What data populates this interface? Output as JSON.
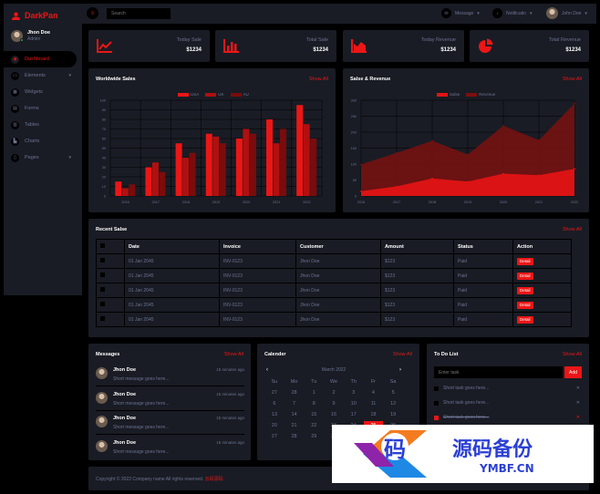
{
  "brand": {
    "name": "DarkPan",
    "color": "#eb1616"
  },
  "user": {
    "name": "Jhon Doe",
    "role": "Admin"
  },
  "sidebar": {
    "items": [
      {
        "label": "Dashboard",
        "icon": "dashboard-icon",
        "active": true
      },
      {
        "label": "Elements",
        "icon": "laptop-icon",
        "has_submenu": true
      },
      {
        "label": "Widgets",
        "icon": "grid-icon"
      },
      {
        "label": "Forms",
        "icon": "keyboard-icon"
      },
      {
        "label": "Tables",
        "icon": "table-icon"
      },
      {
        "label": "Charts",
        "icon": "chart-icon"
      },
      {
        "label": "Pages",
        "icon": "file-icon",
        "has_submenu": true
      }
    ]
  },
  "topbar": {
    "search_placeholder": "Search",
    "message_label": "Message",
    "notification_label": "Notificatin",
    "user_name": "John Doe"
  },
  "stats": [
    {
      "label": "Today Sale",
      "value": "$1234",
      "icon": "line-chart-icon"
    },
    {
      "label": "Total Sale",
      "value": "$1234",
      "icon": "bar-chart-icon"
    },
    {
      "label": "Today Revenue",
      "value": "$1234",
      "icon": "area-chart-icon"
    },
    {
      "label": "Total Revenue",
      "value": "$1234",
      "icon": "pie-chart-icon"
    }
  ],
  "worldwide_sales": {
    "title": "Worldwide Sales",
    "show_all": "Show All"
  },
  "sales_revenue": {
    "title": "Salse & Revenue",
    "show_all": "Show All"
  },
  "chart_data": [
    {
      "type": "bar",
      "title": "Worldwide Sales",
      "categories": [
        "2016",
        "2017",
        "2018",
        "2019",
        "2020",
        "2021",
        "2022"
      ],
      "series": [
        {
          "name": "USA",
          "color": "#eb1616",
          "values": [
            15,
            30,
            55,
            65,
            60,
            80,
            95
          ]
        },
        {
          "name": "UK",
          "color": "#b01010",
          "values": [
            8,
            35,
            40,
            62,
            70,
            55,
            75
          ]
        },
        {
          "name": "AU",
          "color": "#7a0c0c",
          "values": [
            12,
            25,
            45,
            55,
            65,
            70,
            60
          ]
        }
      ],
      "ylim": [
        0,
        100
      ],
      "yticks": [
        0,
        10,
        20,
        30,
        40,
        50,
        60,
        70,
        80,
        90,
        100
      ],
      "legend": "top-center",
      "grid": true
    },
    {
      "type": "area",
      "title": "Salse & Revenue",
      "categories": [
        "2016",
        "2017",
        "2018",
        "2019",
        "2020",
        "2021",
        "2022"
      ],
      "series": [
        {
          "name": "Salse",
          "color": "#e21414",
          "values": [
            15,
            30,
            55,
            45,
            70,
            65,
            85
          ]
        },
        {
          "name": "Revenue",
          "color": "#7a1010",
          "values": [
            99,
            135,
            173,
            130,
            220,
            175,
            290
          ]
        }
      ],
      "ylim": [
        0,
        300
      ],
      "yticks": [
        0,
        50,
        100,
        150,
        200,
        250,
        300
      ],
      "legend": "top-center",
      "grid": true
    }
  ],
  "recent_sales": {
    "title": "Recent Salse",
    "show_all": "Show All",
    "columns": [
      "",
      "Date",
      "Invoice",
      "Customer",
      "Amount",
      "Status",
      "Action"
    ],
    "rows": [
      {
        "date": "01 Jan 2045",
        "invoice": "INV-0123",
        "customer": "Jhon Doe",
        "amount": "$123",
        "status": "Paid",
        "action": "Detail"
      },
      {
        "date": "01 Jan 2045",
        "invoice": "INV-0123",
        "customer": "Jhon Doe",
        "amount": "$123",
        "status": "Paid",
        "action": "Detail"
      },
      {
        "date": "01 Jan 2045",
        "invoice": "INV-0123",
        "customer": "Jhon Doe",
        "amount": "$123",
        "status": "Paid",
        "action": "Detail"
      },
      {
        "date": "01 Jan 2045",
        "invoice": "INV-0123",
        "customer": "Jhon Doe",
        "amount": "$123",
        "status": "Paid",
        "action": "Detail"
      },
      {
        "date": "01 Jan 2045",
        "invoice": "INV-0123",
        "customer": "Jhon Doe",
        "amount": "$123",
        "status": "Paid",
        "action": "Detail"
      }
    ]
  },
  "messages": {
    "title": "Messages",
    "show_all": "Show All",
    "items": [
      {
        "name": "Jhon Doe",
        "time": "15 minutes ago",
        "text": "Short message goes here..."
      },
      {
        "name": "Jhon Doe",
        "time": "15 minutes ago",
        "text": "Short message goes here..."
      },
      {
        "name": "Jhon Doe",
        "time": "15 minutes ago",
        "text": "Short message goes here..."
      },
      {
        "name": "Jhon Doe",
        "time": "15 minutes ago",
        "text": "Short message goes here..."
      }
    ]
  },
  "calendar": {
    "title": "Calender",
    "show_all": "Show All",
    "month": "March 2022",
    "prev": "‹",
    "next": "›",
    "weekdays": [
      "Su",
      "Mo",
      "Tu",
      "We",
      "Th",
      "Fr",
      "Sa"
    ],
    "days": [
      "27",
      "28",
      "1",
      "2",
      "3",
      "4",
      "5",
      "6",
      "7",
      "8",
      "9",
      "10",
      "11",
      "12",
      "13",
      "14",
      "15",
      "16",
      "17",
      "18",
      "19",
      "20",
      "21",
      "22",
      "23",
      "24",
      "25",
      "26",
      "27",
      "28",
      "29",
      "30",
      "31",
      "1",
      "2"
    ],
    "today": "25"
  },
  "todo": {
    "title": "To Do List",
    "show_all": "Show All",
    "placeholder": "Enter task",
    "add_label": "Add",
    "items": [
      {
        "text": "Short task goes here...",
        "done": false
      },
      {
        "text": "Short task goes here...",
        "done": false
      },
      {
        "text": "Short task goes here...",
        "done": true
      }
    ]
  },
  "footer": {
    "copyright": "Copyright © 2022 Company name All rights reserved.",
    "link": "云码源码"
  },
  "watermark": {
    "glyph": "码",
    "title": "源码备份",
    "subtitle": "YMBF.CN"
  }
}
